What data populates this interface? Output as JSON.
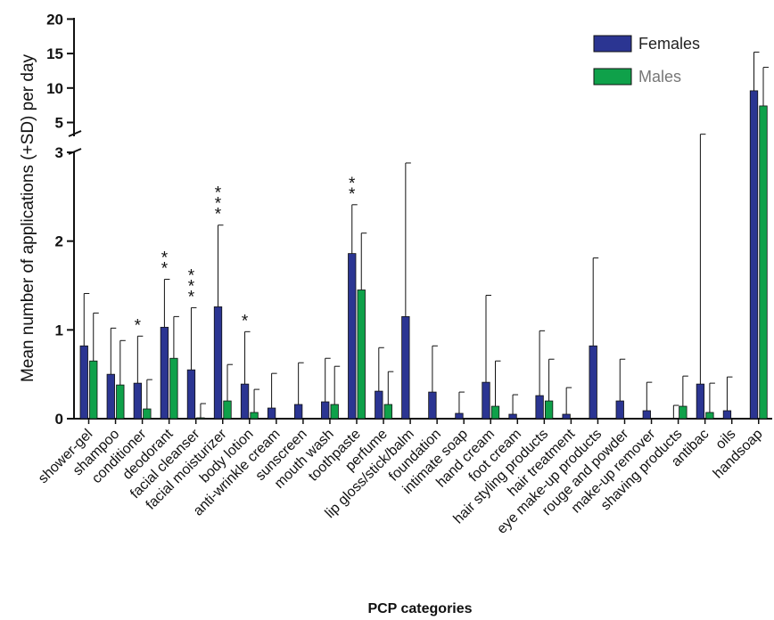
{
  "chart_data": {
    "type": "bar",
    "xlabel": "PCP categories",
    "ylabel": "Mean number of applications (+SD) per day",
    "y_lower_ticks": [
      "0",
      "1",
      "2",
      "3"
    ],
    "y_upper_ticks": [
      "5",
      "10",
      "15",
      "20"
    ],
    "ylim_lower": [
      0,
      3
    ],
    "ylim_upper": [
      3,
      20
    ],
    "y_axis_break": true,
    "legend_position": "top-right",
    "categories": [
      "shower-gel",
      "shampoo",
      "conditioner",
      "deodorant",
      "facial cleanser",
      "facial moisturizer",
      "body lotion",
      "anti-wrinkle cream",
      "sunscreen",
      "mouth wash",
      "toothpaste",
      "perfume",
      "lip gloss/stick/balm",
      "foundation",
      "intimate soap",
      "hand cream",
      "foot cream",
      "hair styling products",
      "hair treatment",
      "eye make-up products",
      "rouge and powder",
      "make-up remover",
      "shaving products",
      "antibac",
      "oils",
      "handsoap"
    ],
    "series": [
      {
        "name": "Females",
        "color": "#2b3592",
        "values": [
          0.82,
          0.5,
          0.4,
          1.03,
          0.55,
          1.26,
          0.39,
          0.12,
          0.16,
          0.19,
          1.86,
          0.31,
          1.15,
          0.3,
          0.06,
          0.41,
          0.05,
          0.26,
          0.05,
          0.82,
          0.2,
          0.09,
          0.0,
          0.39,
          0.09,
          9.6
        ],
        "sd_upper": [
          1.41,
          1.02,
          0.93,
          1.57,
          1.25,
          2.18,
          0.98,
          0.51,
          0.63,
          0.68,
          2.41,
          0.8,
          2.88,
          0.82,
          0.3,
          1.39,
          0.27,
          0.99,
          0.35,
          1.81,
          0.67,
          0.41,
          0.15,
          3.3,
          0.47,
          15.2
        ]
      },
      {
        "name": "Males",
        "color": "#0fa14a",
        "values": [
          0.65,
          0.38,
          0.11,
          0.68,
          0.01,
          0.2,
          0.07,
          0.0,
          0.0,
          0.16,
          1.45,
          0.16,
          0.0,
          0.0,
          0.0,
          0.14,
          0.0,
          0.2,
          0.0,
          0.0,
          0.0,
          0.0,
          0.14,
          0.07,
          0.0,
          7.4
        ],
        "sd_upper": [
          1.19,
          0.88,
          0.44,
          1.15,
          0.17,
          0.61,
          0.33,
          0.0,
          0.0,
          0.59,
          2.09,
          0.53,
          0.0,
          0.0,
          0.0,
          0.65,
          0.0,
          0.67,
          0.0,
          0.0,
          0.0,
          0.0,
          0.48,
          0.4,
          0.0,
          13.0
        ]
      }
    ],
    "significance": [
      {
        "category": "conditioner",
        "label": "*"
      },
      {
        "category": "deodorant",
        "label": "**"
      },
      {
        "category": "facial cleanser",
        "label": "***"
      },
      {
        "category": "facial moisturizer",
        "label": "***"
      },
      {
        "category": "body lotion",
        "label": "*"
      },
      {
        "category": "toothpaste",
        "label": "**"
      }
    ]
  }
}
